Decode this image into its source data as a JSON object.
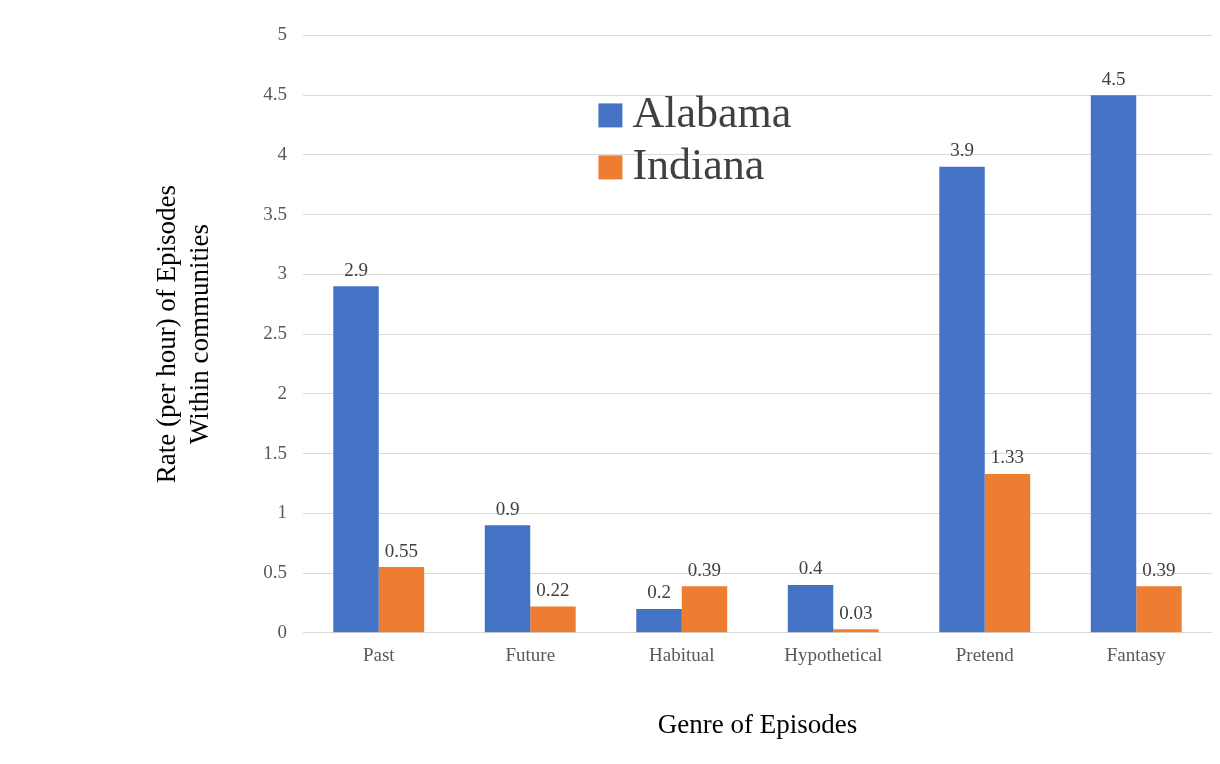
{
  "chart_data": {
    "type": "bar",
    "xlabel": "Genre of Episodes",
    "ylabel": "Rate (per hour) of Episodes\nWithin communities",
    "categories": [
      "Past",
      "Future",
      "Habitual",
      "Hypothetical",
      "Pretend",
      "Fantasy"
    ],
    "series": [
      {
        "name": "Alabama",
        "color": "#4472c4",
        "values": [
          2.9,
          0.9,
          0.2,
          0.4,
          3.9,
          4.5
        ]
      },
      {
        "name": "Indiana",
        "color": "#ed7d31",
        "values": [
          0.55,
          0.22,
          0.39,
          0.03,
          1.33,
          0.39
        ]
      }
    ],
    "ylim": [
      0,
      5
    ],
    "yticks": [
      0,
      0.5,
      1,
      1.5,
      2,
      2.5,
      3,
      3.5,
      4,
      4.5,
      5
    ],
    "grid": "y",
    "legend": "top",
    "data_labels": true
  }
}
